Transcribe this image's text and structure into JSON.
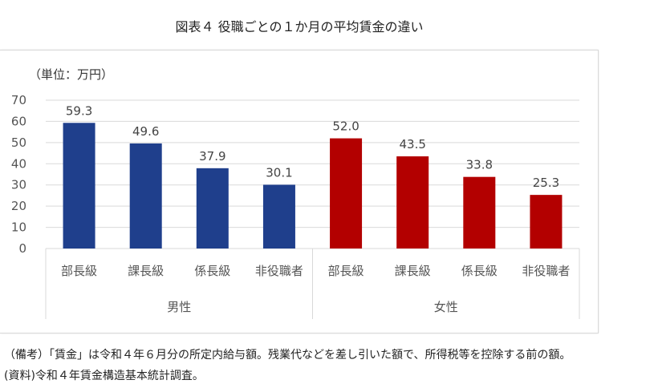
{
  "chart_data": {
    "type": "bar",
    "title": "図表４ 役職ごとの１か月の平均賃金の違い",
    "ylabel": "（単位：万円）",
    "ylim": [
      0,
      70
    ],
    "yticks": [
      0,
      10,
      20,
      30,
      40,
      50,
      60,
      70
    ],
    "grid": true,
    "groups": [
      {
        "name": "男性",
        "color": "#1f3f8c",
        "categories": [
          "部長級",
          "課長級",
          "係長級",
          "非役職者"
        ],
        "values": [
          59.3,
          49.6,
          37.9,
          30.1
        ],
        "labels": [
          "59.3",
          "49.6",
          "37.9",
          "30.1"
        ]
      },
      {
        "name": "女性",
        "color": "#b30000",
        "categories": [
          "部長級",
          "課長級",
          "係長級",
          "非役職者"
        ],
        "values": [
          52.0,
          43.5,
          33.8,
          25.3
        ],
        "labels": [
          "52.0",
          "43.5",
          "33.8",
          "25.3"
        ]
      }
    ]
  },
  "notes": {
    "remark": "（備考）「賃金」は令和４年６月分の所定内給与額。残業代などを差し引いた額で、所得税等を控除する前の額。",
    "source": "(資料)令和４年賃金構造基本統計調査。"
  }
}
